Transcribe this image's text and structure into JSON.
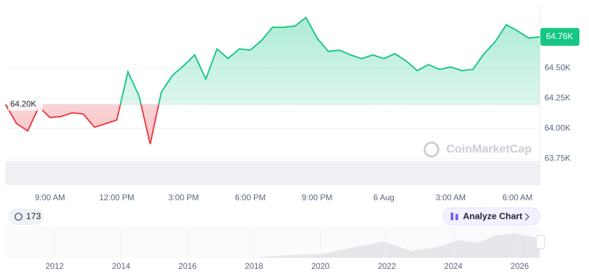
{
  "chart_data": {
    "type": "line",
    "categories": [
      null,
      null,
      null,
      null,
      "9:00 AM",
      null,
      null,
      null,
      null,
      null,
      "12:00 PM",
      null,
      null,
      null,
      null,
      null,
      "3:00 PM",
      null,
      null,
      null,
      null,
      null,
      "6:00 PM",
      null,
      null,
      null,
      null,
      null,
      "9:00 PM",
      null,
      null,
      null,
      null,
      null,
      "6 Aug",
      null,
      null,
      null,
      null,
      null,
      "3:00 AM",
      null,
      null,
      null,
      null,
      null,
      "6:00 AM",
      null,
      null
    ],
    "values": [
      64.2,
      64.04,
      63.98,
      64.18,
      64.09,
      64.1,
      64.13,
      64.12,
      64.01,
      64.04,
      64.07,
      64.47,
      64.27,
      63.87,
      64.3,
      64.44,
      64.52,
      64.61,
      64.41,
      64.66,
      64.58,
      64.66,
      64.65,
      64.73,
      64.84,
      64.84,
      64.85,
      64.92,
      64.75,
      64.64,
      64.65,
      64.61,
      64.58,
      64.61,
      64.58,
      64.62,
      64.56,
      64.48,
      64.53,
      64.49,
      64.51,
      64.48,
      64.49,
      64.62,
      64.72,
      64.86,
      64.81,
      64.75,
      64.76
    ],
    "color": "#16c784",
    "negative_color": "#ea3943",
    "baseline": {
      "value": 64.2,
      "label": "64.20K"
    },
    "current_label": "64.76K",
    "ylim": [
      63.53,
      65.02
    ],
    "yticks": [
      {
        "value": 63.75,
        "label": "63.75K"
      },
      {
        "value": 64.0,
        "label": "64.00K"
      },
      {
        "value": 64.25,
        "label": "64.25K"
      },
      {
        "value": 64.5,
        "label": "64.50K"
      }
    ],
    "grid": true,
    "watermark": "CoinMarketCap",
    "navigator": {
      "xlim": [
        2010.52,
        2026.6
      ],
      "xticks": [
        2012,
        2014,
        2016,
        2018,
        2020,
        2022,
        2024,
        2026
      ]
    },
    "history_badge": "173",
    "analyze_button": "Analyze Chart"
  }
}
